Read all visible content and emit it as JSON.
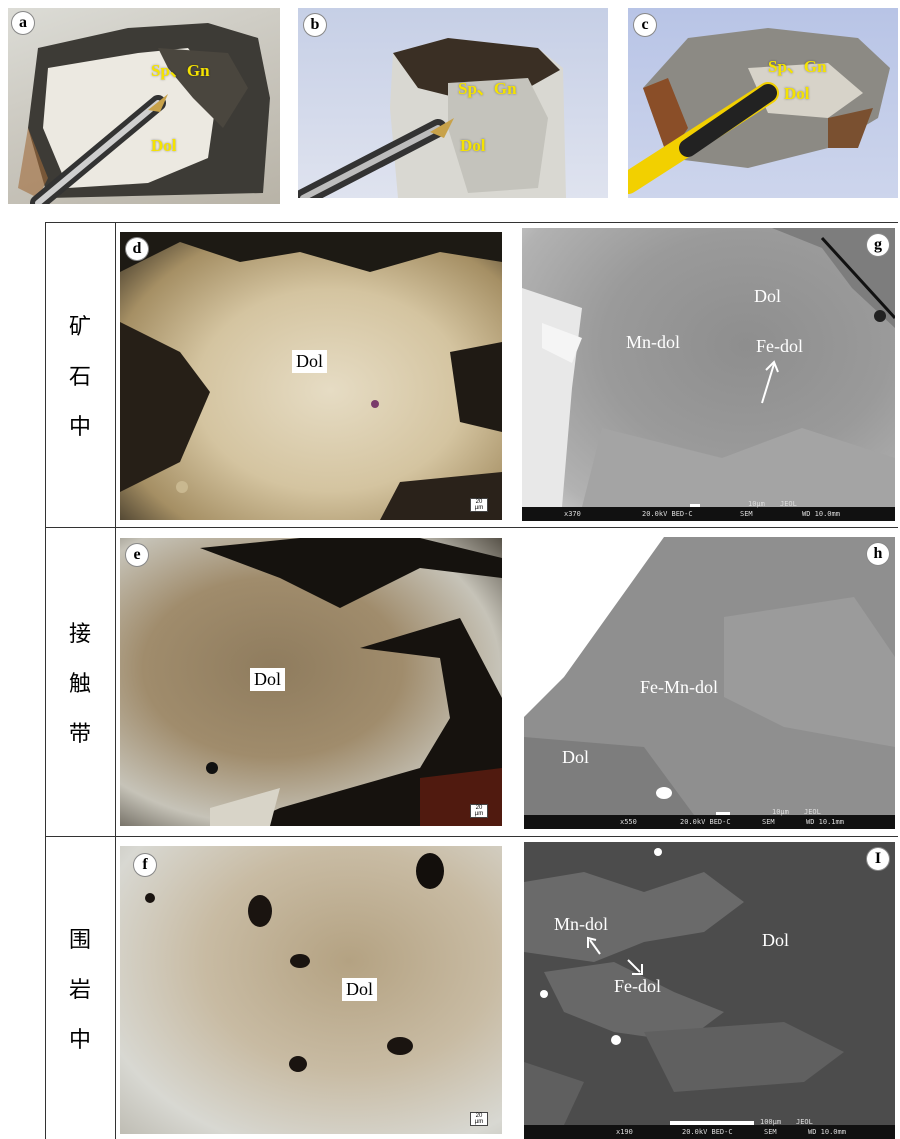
{
  "top_photos": [
    {
      "letter": "a",
      "minerals": "Sp、Gn",
      "host": "Dol"
    },
    {
      "letter": "b",
      "minerals": "Sp、Gn",
      "host": "Dol"
    },
    {
      "letter": "c",
      "minerals": "Sp、Gn",
      "host": "Dol"
    }
  ],
  "rows": [
    {
      "label_chars": [
        "矿",
        "石",
        "中"
      ]
    },
    {
      "label_chars": [
        "接",
        "触",
        "带"
      ]
    },
    {
      "label_chars": [
        "围",
        "岩",
        "中"
      ]
    }
  ],
  "micro": [
    {
      "letter": "d",
      "label": "Dol",
      "scale": "20 µm"
    },
    {
      "letter": "e",
      "label": "Dol",
      "scale": "20 µm"
    },
    {
      "letter": "f",
      "label": "Dol",
      "scale": "20 µm"
    }
  ],
  "sem": [
    {
      "letter": "g",
      "labels": [
        "Dol",
        "Mn-dol",
        "Fe-dol"
      ],
      "mag": "x370",
      "kv": "20.0kV BED-C",
      "mode": "SEM",
      "scale": "10µm",
      "brand": "JEOL",
      "wd": "WD 10.0mm"
    },
    {
      "letter": "h",
      "labels": [
        "Fe-Mn-dol",
        "Dol"
      ],
      "mag": "x550",
      "kv": "20.0kV BED-C",
      "mode": "SEM",
      "scale": "10µm",
      "brand": "JEOL",
      "wd": "WD 10.1mm"
    },
    {
      "letter": "I",
      "labels": [
        "Mn-dol",
        "Dol",
        "Fe-dol"
      ],
      "mag": "x190",
      "kv": "20.0kV BED-C",
      "mode": "SEM",
      "scale": "100µm",
      "brand": "JEOL",
      "wd": "WD 10.0mm"
    }
  ]
}
